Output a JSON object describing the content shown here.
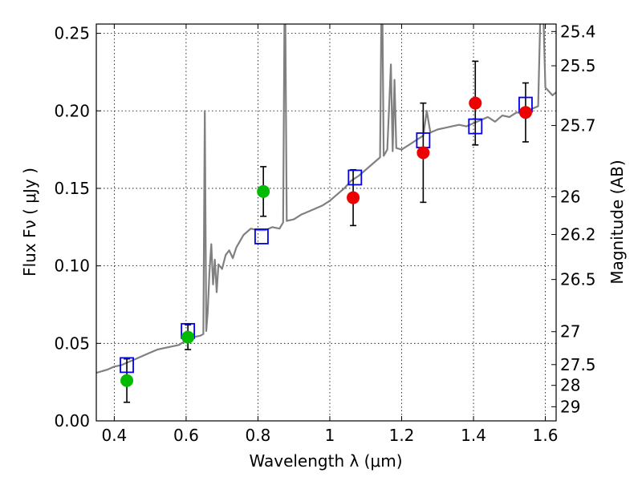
{
  "chart_data": {
    "type": "scatter",
    "xlabel": "Wavelength  λ (μm)",
    "ylabel": "Flux  Fν  ( μJy )",
    "ylabel_right": "Magnitude (AB)",
    "xlim": [
      0.35,
      1.63
    ],
    "ylim": [
      0.0,
      0.256
    ],
    "grid": true,
    "x_ticks": [
      {
        "value": 0.4,
        "label": "0.4"
      },
      {
        "value": 0.6,
        "label": "0.6"
      },
      {
        "value": 0.8,
        "label": "0.8"
      },
      {
        "value": 1.0,
        "label": "1"
      },
      {
        "value": 1.2,
        "label": "1.2"
      },
      {
        "value": 1.4,
        "label": "1.4"
      },
      {
        "value": 1.6,
        "label": "1.6"
      }
    ],
    "y_ticks": [
      {
        "value": 0.0,
        "label": "0.00"
      },
      {
        "value": 0.05,
        "label": "0.05"
      },
      {
        "value": 0.1,
        "label": "0.10"
      },
      {
        "value": 0.15,
        "label": "0.15"
      },
      {
        "value": 0.2,
        "label": "0.20"
      },
      {
        "value": 0.25,
        "label": "0.25"
      }
    ],
    "right_ticks": [
      {
        "mag": 25.4,
        "label": "25.4"
      },
      {
        "mag": 25.5,
        "label": "25.5"
      },
      {
        "mag": 25.7,
        "label": "25.7"
      },
      {
        "mag": 26.0,
        "label": "26"
      },
      {
        "mag": 26.2,
        "label": "26.2"
      },
      {
        "mag": 26.5,
        "label": "26.5"
      },
      {
        "mag": 27.0,
        "label": "27"
      },
      {
        "mag": 27.5,
        "label": "27.5"
      },
      {
        "mag": 28.0,
        "label": "28"
      },
      {
        "mag": 29.0,
        "label": "29"
      }
    ],
    "series": [
      {
        "kind": "spectrum",
        "color": "#808080",
        "points": [
          [
            0.35,
            0.031
          ],
          [
            0.38,
            0.033
          ],
          [
            0.4,
            0.035
          ],
          [
            0.42,
            0.036
          ],
          [
            0.44,
            0.038
          ],
          [
            0.46,
            0.04
          ],
          [
            0.48,
            0.042
          ],
          [
            0.5,
            0.044
          ],
          [
            0.52,
            0.046
          ],
          [
            0.54,
            0.047
          ],
          [
            0.56,
            0.048
          ],
          [
            0.58,
            0.049
          ],
          [
            0.6,
            0.052
          ],
          [
            0.62,
            0.054
          ],
          [
            0.64,
            0.055
          ],
          [
            0.648,
            0.056
          ],
          [
            0.652,
            0.2
          ],
          [
            0.656,
            0.058
          ],
          [
            0.66,
            0.07
          ],
          [
            0.665,
            0.096
          ],
          [
            0.67,
            0.114
          ],
          [
            0.675,
            0.088
          ],
          [
            0.68,
            0.104
          ],
          [
            0.685,
            0.083
          ],
          [
            0.69,
            0.101
          ],
          [
            0.7,
            0.098
          ],
          [
            0.71,
            0.107
          ],
          [
            0.72,
            0.11
          ],
          [
            0.73,
            0.105
          ],
          [
            0.74,
            0.112
          ],
          [
            0.75,
            0.116
          ],
          [
            0.76,
            0.12
          ],
          [
            0.78,
            0.124
          ],
          [
            0.8,
            0.123
          ],
          [
            0.82,
            0.123
          ],
          [
            0.84,
            0.125
          ],
          [
            0.86,
            0.124
          ],
          [
            0.87,
            0.128
          ],
          [
            0.875,
            0.3
          ],
          [
            0.88,
            0.129
          ],
          [
            0.9,
            0.13
          ],
          [
            0.92,
            0.133
          ],
          [
            0.94,
            0.135
          ],
          [
            0.96,
            0.137
          ],
          [
            0.98,
            0.139
          ],
          [
            1.0,
            0.142
          ],
          [
            1.02,
            0.146
          ],
          [
            1.04,
            0.15
          ],
          [
            1.06,
            0.155
          ],
          [
            1.08,
            0.158
          ],
          [
            1.1,
            0.162
          ],
          [
            1.12,
            0.166
          ],
          [
            1.14,
            0.17
          ],
          [
            1.145,
            0.3
          ],
          [
            1.15,
            0.171
          ],
          [
            1.16,
            0.175
          ],
          [
            1.17,
            0.23
          ],
          [
            1.175,
            0.174
          ],
          [
            1.18,
            0.22
          ],
          [
            1.185,
            0.176
          ],
          [
            1.2,
            0.175
          ],
          [
            1.22,
            0.178
          ],
          [
            1.24,
            0.181
          ],
          [
            1.26,
            0.184
          ],
          [
            1.27,
            0.2
          ],
          [
            1.28,
            0.186
          ],
          [
            1.3,
            0.188
          ],
          [
            1.32,
            0.189
          ],
          [
            1.34,
            0.19
          ],
          [
            1.36,
            0.191
          ],
          [
            1.38,
            0.19
          ],
          [
            1.4,
            0.192
          ],
          [
            1.42,
            0.194
          ],
          [
            1.44,
            0.196
          ],
          [
            1.46,
            0.193
          ],
          [
            1.48,
            0.197
          ],
          [
            1.5,
            0.196
          ],
          [
            1.52,
            0.199
          ],
          [
            1.54,
            0.198
          ],
          [
            1.56,
            0.201
          ],
          [
            1.58,
            0.203
          ],
          [
            1.59,
            0.3
          ],
          [
            1.6,
            0.215
          ],
          [
            1.62,
            0.21
          ],
          [
            1.63,
            0.212
          ]
        ]
      },
      {
        "kind": "model_boxes",
        "color": "#0000ee",
        "points": [
          [
            0.435,
            0.036
          ],
          [
            0.605,
            0.058
          ],
          [
            0.81,
            0.119
          ],
          [
            1.07,
            0.157
          ],
          [
            1.26,
            0.181
          ],
          [
            1.405,
            0.19
          ],
          [
            1.545,
            0.204
          ]
        ]
      },
      {
        "kind": "observed",
        "color": "#00bb00",
        "points": [
          {
            "x": 0.435,
            "y": 0.026,
            "err": 0.014
          },
          {
            "x": 0.605,
            "y": 0.054,
            "err": 0.008
          },
          {
            "x": 0.815,
            "y": 0.148,
            "err": 0.016
          }
        ]
      },
      {
        "kind": "observed",
        "color": "#ee0000",
        "points": [
          {
            "x": 1.065,
            "y": 0.144,
            "err": 0.018
          },
          {
            "x": 1.26,
            "y": 0.173,
            "err": 0.032
          },
          {
            "x": 1.405,
            "y": 0.205,
            "err": 0.027
          },
          {
            "x": 1.545,
            "y": 0.199,
            "err": 0.019
          }
        ]
      }
    ]
  }
}
